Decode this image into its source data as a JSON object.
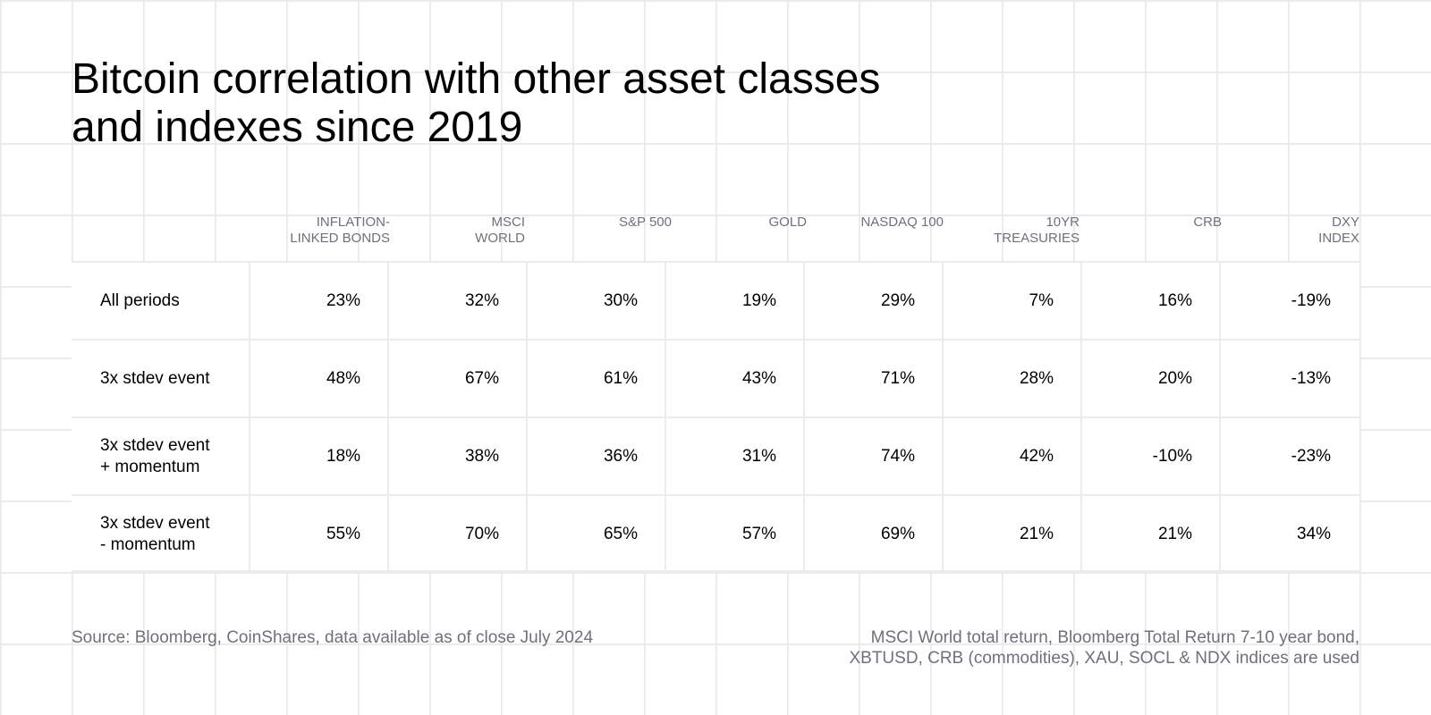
{
  "header": {
    "title": "Bitcoin correlation with other asset classes\nand indexes since 2019"
  },
  "chart_data": {
    "type": "table",
    "columns": [
      [
        "INFLATION-",
        "LINKED BONDS"
      ],
      [
        "MSCI",
        "WORLD"
      ],
      [
        "S&P 500"
      ],
      [
        "GOLD"
      ],
      [
        "NASDAQ 100"
      ],
      [
        "10YR",
        "TREASURIES"
      ],
      [
        "CRB"
      ],
      [
        "DXY",
        "INDEX"
      ]
    ],
    "rows": [
      {
        "label": "All periods",
        "values": [
          "23%",
          "32%",
          "30%",
          "19%",
          "29%",
          "7%",
          "16%",
          "-19%"
        ]
      },
      {
        "label": "3x stdev event",
        "values": [
          "48%",
          "67%",
          "61%",
          "43%",
          "71%",
          "28%",
          "20%",
          "-13%"
        ]
      },
      {
        "label": "3x stdev event\n+ momentum",
        "values": [
          "18%",
          "38%",
          "36%",
          "31%",
          "74%",
          "42%",
          "-10%",
          "-23%"
        ]
      },
      {
        "label": "3x stdev event\n- momentum",
        "values": [
          "55%",
          "70%",
          "65%",
          "57%",
          "69%",
          "21%",
          "21%",
          "34%"
        ]
      }
    ]
  },
  "footer": {
    "source": "Source: Bloomberg, CoinShares, data available as of close July 2024",
    "note_line1": "MSCI World total return, Bloomberg Total Return 7-10 year bond,",
    "note_line2": "XBTUSD, CRB (commodities), XAU, SOCL & NDX indices are used"
  }
}
